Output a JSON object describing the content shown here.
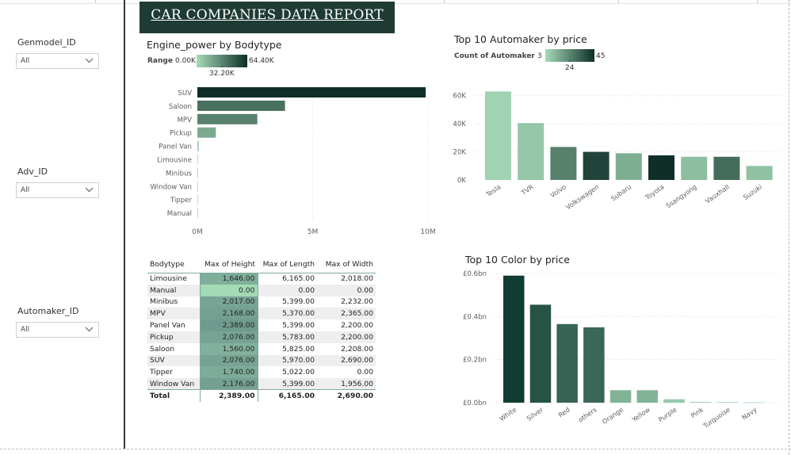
{
  "report_title": "CAR COMPANIES DATA REPORT",
  "slicers": [
    {
      "label": "Genmodel_ID",
      "value": "All"
    },
    {
      "label": "Adv_ID",
      "value": "All"
    },
    {
      "label": "Automaker_ID",
      "value": "All"
    }
  ],
  "colors": {
    "dark": "#0f2e28",
    "mid": "#7fa399",
    "light": "#a6dbb8",
    "header_bg": "#1e3b34"
  },
  "chart_data": [
    {
      "type": "bar",
      "orientation": "horizontal",
      "title": "Engine_power by Bodytype",
      "legend": {
        "label": "Range",
        "min": "0.00K",
        "mid": "32.20K",
        "max": "64.40K"
      },
      "categories": [
        "SUV",
        "Saloon",
        "MPV",
        "Pickup",
        "Panel Van",
        "Limousine",
        "Minibus",
        "Window Van",
        "Tipper",
        "Manual"
      ],
      "values": [
        9900000,
        3800000,
        2600000,
        800000,
        60000,
        15000,
        10000,
        8000,
        5000,
        2000
      ],
      "xlim": [
        0,
        10000000
      ],
      "ticks": [
        "0M",
        "5M",
        "10M"
      ],
      "grid": true
    },
    {
      "type": "bar",
      "title": "Top 10 Automaker by price",
      "legend": {
        "label": "Count of Automaker",
        "min": "3",
        "mid": "24",
        "max": "45"
      },
      "categories": [
        "Tesla",
        "TVR",
        "Volvo",
        "Volkswagen",
        "Subaru",
        "Toyota",
        "Ssangyong",
        "Vauxhall",
        "Suzuki"
      ],
      "values": [
        63000,
        40500,
        23500,
        20000,
        19000,
        17500,
        16500,
        16500,
        10000
      ],
      "color_values": [
        5,
        8,
        25,
        40,
        14,
        45,
        10,
        30,
        9
      ],
      "ylim": [
        0,
        70000
      ],
      "yticks": [
        "0K",
        "20K",
        "40K",
        "60K"
      ],
      "grid": true
    },
    {
      "type": "bar",
      "title": "Top 10 Color by price",
      "categories": [
        "White",
        "Silver",
        "Red",
        "others",
        "Orange",
        "Yellow",
        "Purple",
        "Pink",
        "Turquoise",
        "Navy"
      ],
      "values": [
        0.59,
        0.455,
        0.365,
        0.35,
        0.058,
        0.058,
        0.016,
        0.004,
        0.003,
        0.002
      ],
      "ylim": [
        0,
        0.6
      ],
      "yticks": [
        "£0.0bn",
        "£0.2bn",
        "£0.4bn",
        "£0.6bn"
      ],
      "grid": true
    },
    {
      "type": "table",
      "columns": [
        "Bodytype",
        "Max of Height",
        "Max of Length",
        "Max of Width"
      ],
      "rows": [
        [
          "Limousine",
          "1,646.00",
          "6,165.00",
          "2,018.00"
        ],
        [
          "Manual",
          "0.00",
          "0.00",
          "0.00"
        ],
        [
          "Minibus",
          "2,017.00",
          "5,399.00",
          "2,232.00"
        ],
        [
          "MPV",
          "2,168.00",
          "5,370.00",
          "2,365.00"
        ],
        [
          "Panel Van",
          "2,389.00",
          "5,399.00",
          "2,200.00"
        ],
        [
          "Pickup",
          "2,076.00",
          "5,783.00",
          "2,200.00"
        ],
        [
          "Saloon",
          "1,560.00",
          "5,825.00",
          "2,208.00"
        ],
        [
          "SUV",
          "2,076.00",
          "5,970.00",
          "2,690.00"
        ],
        [
          "Tipper",
          "1,740.00",
          "5,022.00",
          "0.00"
        ],
        [
          "Window Van",
          "2,176.00",
          "5,399.00",
          "1,956.00"
        ]
      ],
      "height_values": [
        1646,
        0,
        2017,
        2168,
        2389,
        2076,
        1560,
        2076,
        1740,
        2176
      ],
      "total": [
        "Total",
        "2,389.00",
        "6,165.00",
        "2,690.00"
      ]
    }
  ]
}
